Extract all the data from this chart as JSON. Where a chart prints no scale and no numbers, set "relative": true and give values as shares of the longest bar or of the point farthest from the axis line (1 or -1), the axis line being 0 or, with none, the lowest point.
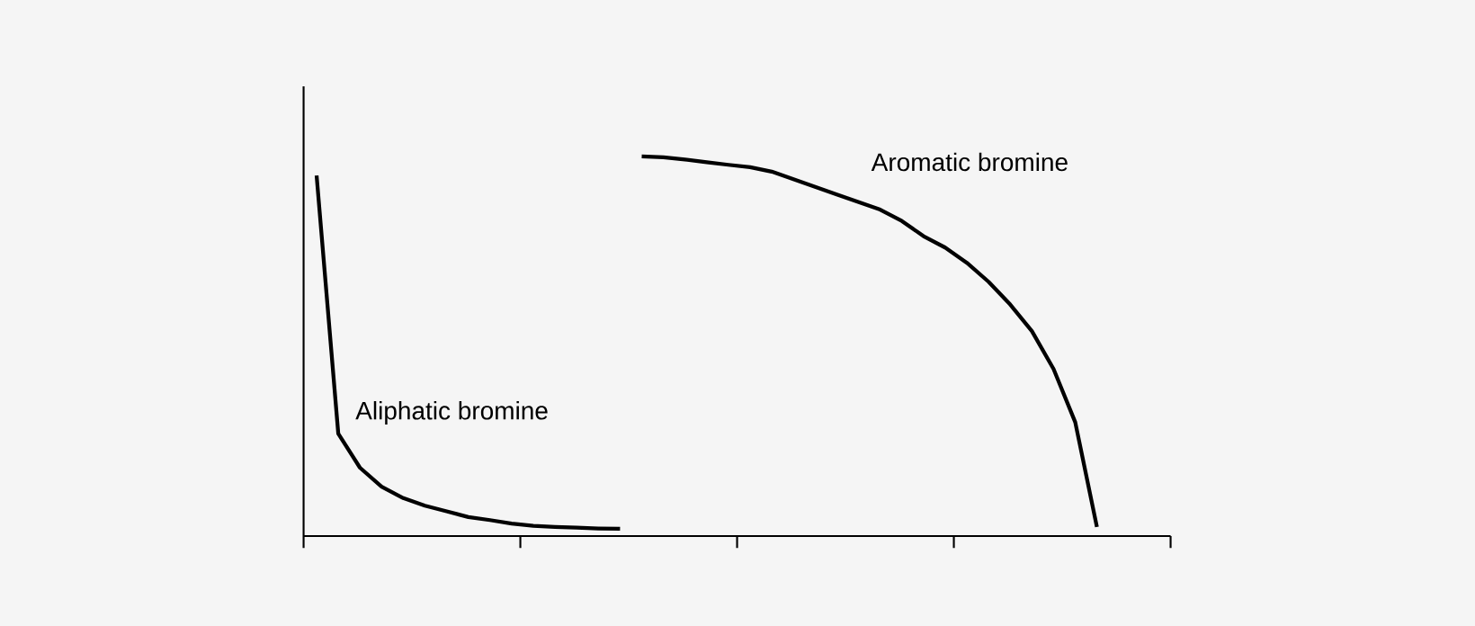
{
  "chart_data": {
    "type": "line",
    "relative": true,
    "categories": [
      null,
      null,
      null,
      null,
      null,
      null,
      null,
      null,
      null,
      null,
      null,
      null,
      null,
      null,
      null,
      null,
      null,
      null,
      null,
      null,
      null,
      null,
      null,
      null,
      null,
      null,
      null,
      null,
      null,
      null,
      null,
      null,
      null,
      null,
      null,
      null,
      null
    ],
    "marker": "none",
    "line_style": "solid",
    "series": [
      {
        "name": "Aliphatic bromine",
        "color": "#000000",
        "values": [
          0.95,
          0.27,
          0.18,
          0.13,
          0.1,
          0.08,
          0.065,
          0.05,
          0.042,
          0.033,
          0.027,
          0.024,
          0.022,
          0.02,
          0.019,
          null,
          null,
          null,
          null,
          null,
          null,
          null,
          null,
          null,
          null,
          null,
          null,
          null,
          null,
          null,
          null,
          null,
          null,
          null,
          null,
          null,
          null
        ]
      },
      {
        "name": "Aromatic bromine",
        "color": "#000000",
        "values": [
          null,
          null,
          null,
          null,
          null,
          null,
          null,
          null,
          null,
          null,
          null,
          null,
          null,
          null,
          null,
          1.0,
          0.998,
          0.992,
          0.985,
          0.978,
          0.972,
          0.96,
          0.94,
          0.92,
          0.9,
          0.88,
          0.86,
          0.83,
          0.79,
          0.76,
          0.72,
          0.67,
          0.61,
          0.54,
          0.44,
          0.3,
          0.024
        ]
      }
    ]
  }
}
